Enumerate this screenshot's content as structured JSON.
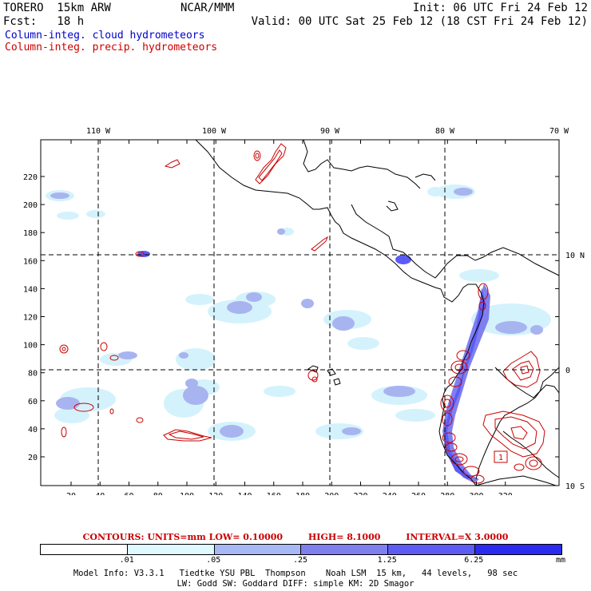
{
  "header": {
    "model_run": "TORERO  15km ARW",
    "institution": "NCAR/MMM",
    "init": "Init: 06 UTC Fri 24 Feb 12",
    "forecast": "Fcst:   18 h",
    "valid": "Valid: 00 UTC Sat 25 Feb 12 (18 CST Fri 24 Feb 12)"
  },
  "legend": {
    "cloud_label": "Column-integ. cloud hydrometeors",
    "precip_label": "Column-integ. precip. hydrometeors"
  },
  "colors": {
    "cloud_text": "#0000cc",
    "precip_text": "#cc0000",
    "coast": "#000000",
    "precip_contour": "#cc0000",
    "shade_1": "#e0f8ff",
    "shade_2": "#b8e8f8",
    "shade_3": "#a8b8f4",
    "shade_4": "#7f7ff0",
    "shade_5": "#5c5cf4",
    "shade_6": "#2a2af0"
  },
  "map": {
    "x_ticks": [
      "20",
      "40",
      "60",
      "80",
      "100",
      "120",
      "140",
      "160",
      "180",
      "200",
      "220",
      "240",
      "260",
      "280",
      "300",
      "320"
    ],
    "y_ticks": [
      "20",
      "40",
      "60",
      "80",
      "100",
      "120",
      "140",
      "160",
      "180",
      "200",
      "220"
    ],
    "lon_labels": [
      "110 W",
      "100 W",
      "90 W",
      "80 W",
      "70 W"
    ],
    "lat_labels": [
      "10 N",
      "0",
      "10 S"
    ],
    "box_label": "1"
  },
  "contour_info": {
    "units": "CONTOURS:  UNITS=mm  LOW= 0.10000",
    "high": "HIGH=  8.1000",
    "interval": "INTERVAL=X  3.0000"
  },
  "colorbar": {
    "labels": [
      ".01",
      ".05",
      ".25",
      "1.25",
      "6.25"
    ],
    "unit": "mm"
  },
  "model_info": {
    "line1": "Model Info: V3.3.1   Tiedtke YSU PBL  Thompson    Noah LSM  15 km,   44 levels,   98 sec",
    "line2": "LW: Godd SW: Goddard DIFF: simple KM: 2D Smagor"
  }
}
